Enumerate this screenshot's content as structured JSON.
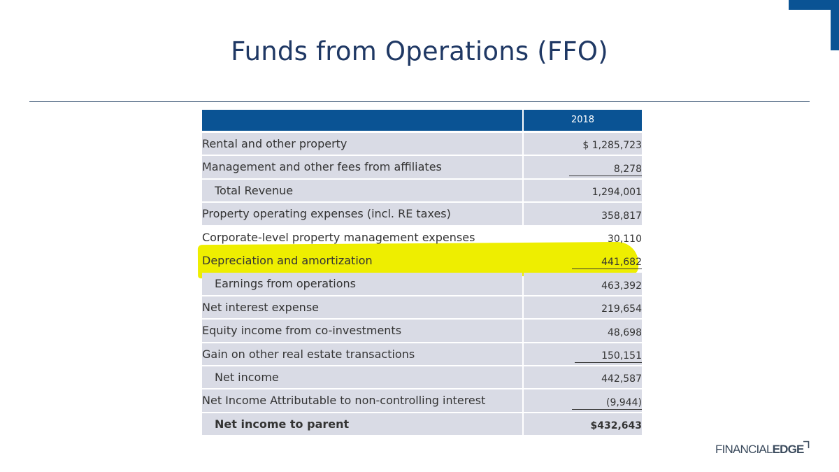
{
  "title": "Funds from Operations (FFO)",
  "table": {
    "year": "2018",
    "rows": [
      {
        "label": "Rental and other property",
        "value": "$ 1,285,723"
      },
      {
        "label": "Management and other fees from affiliates",
        "value": "8,278"
      },
      {
        "label": "Total Revenue",
        "value": "1,294,001"
      },
      {
        "label": "Property operating expenses (incl. RE taxes)",
        "value": "358,817"
      },
      {
        "label": "Corporate-level property management expenses",
        "value": "30,110"
      },
      {
        "label": "Depreciation and amortization",
        "value": "441,682"
      },
      {
        "label": "Earnings from operations",
        "value": "463,392"
      },
      {
        "label": "Net interest expense",
        "value": "219,654"
      },
      {
        "label": "Equity income from co-investments",
        "value": "48,698"
      },
      {
        "label": "Gain on other real estate transactions",
        "value": "150,151"
      },
      {
        "label": "Net income",
        "value": "442,587"
      },
      {
        "label": "Net Income Attributable to non-controlling interest",
        "value": "(9,944)"
      },
      {
        "label": "Net income to parent",
        "value": "$432,643"
      }
    ]
  },
  "brand": {
    "part1": "FINANCIAL",
    "part2": "EDGE"
  },
  "colors": {
    "header": "#0a5394",
    "row": "#d9dbe5",
    "highlight": "#eeee00",
    "title": "#1f3864"
  }
}
